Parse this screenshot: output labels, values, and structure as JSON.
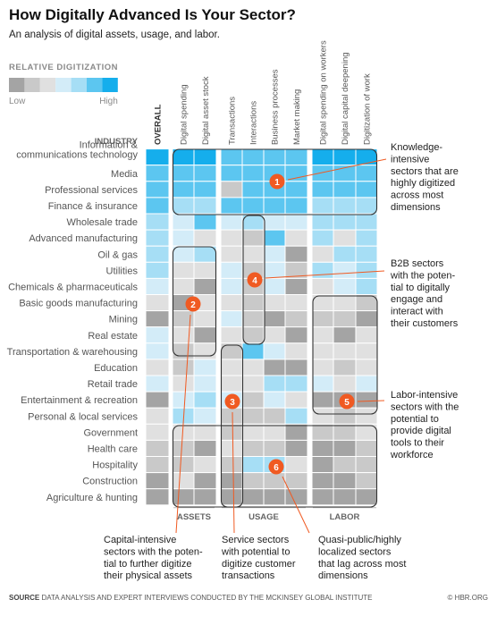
{
  "title": "How Digitally Advanced Is Your Sector?",
  "subtitle": "An analysis of digital assets, usage, and labor.",
  "footer": {
    "source_label": "SOURCE",
    "source_text": "DATA ANALYSIS AND EXPERT INTERVIEWS CONDUCTED BY THE MCKINSEY GLOBAL INSTITUTE",
    "brand": "© HBR.ORG"
  },
  "legend": {
    "title": "RELATIVE DIGITIZATION",
    "low": "Low",
    "high": "High",
    "colors": [
      "#a4a4a4",
      "#c9c9c9",
      "#e0e0e0",
      "#d3ecf8",
      "#a6def5",
      "#5cc6f0",
      "#15aeec"
    ]
  },
  "chart_data": {
    "type": "heatmap",
    "row_header": "INDUSTRY",
    "columns": [
      "OVERALL",
      "Digital spending",
      "Digital asset stock",
      "Transactions",
      "Interactions",
      "Business processes",
      "Market making",
      "Digital spending on workers",
      "Digital capital deepening",
      "Digitization of work"
    ],
    "column_groups": [
      {
        "label": "ASSETS",
        "columns": [
          1,
          2
        ]
      },
      {
        "label": "USAGE",
        "columns": [
          3,
          4,
          5,
          6
        ]
      },
      {
        "label": "LABOR",
        "columns": [
          7,
          8,
          9
        ]
      }
    ],
    "scale": "relative digitization level 0 (low) to 6 (high)",
    "rows": [
      {
        "industry": "Information & communications technology",
        "values": [
          6,
          6,
          6,
          5,
          5,
          5,
          5,
          6,
          6,
          6
        ]
      },
      {
        "industry": "Media",
        "values": [
          5,
          5,
          5,
          5,
          5,
          5,
          5,
          5,
          5,
          5
        ]
      },
      {
        "industry": "Professional services",
        "values": [
          5,
          5,
          5,
          1,
          5,
          5,
          5,
          5,
          5,
          5
        ]
      },
      {
        "industry": "Finance & insurance",
        "values": [
          5,
          4,
          4,
          5,
          5,
          5,
          5,
          4,
          4,
          4
        ]
      },
      {
        "industry": "Wholesale trade",
        "values": [
          4,
          3,
          5,
          3,
          4,
          3,
          3,
          4,
          4,
          4
        ]
      },
      {
        "industry": "Advanced manufacturing",
        "values": [
          4,
          3,
          2,
          2,
          1,
          5,
          2,
          4,
          2,
          4
        ]
      },
      {
        "industry": "Oil & gas",
        "values": [
          4,
          3,
          4,
          2,
          2,
          3,
          0,
          2,
          4,
          4
        ]
      },
      {
        "industry": "Utilities",
        "values": [
          4,
          2,
          2,
          3,
          1,
          3,
          1,
          4,
          3,
          4
        ]
      },
      {
        "industry": "Chemicals & pharmaceuticals",
        "values": [
          3,
          2,
          0,
          3,
          1,
          3,
          0,
          2,
          3,
          4
        ]
      },
      {
        "industry": "Basic goods manufacturing",
        "values": [
          2,
          0,
          2,
          2,
          1,
          2,
          2,
          2,
          2,
          1
        ]
      },
      {
        "industry": "Mining",
        "values": [
          0,
          1,
          2,
          3,
          1,
          0,
          1,
          1,
          1,
          0
        ]
      },
      {
        "industry": "Real estate",
        "values": [
          3,
          2,
          0,
          2,
          1,
          2,
          0,
          2,
          0,
          2
        ]
      },
      {
        "industry": "Transportation & warehousing",
        "values": [
          3,
          1,
          2,
          1,
          5,
          3,
          2,
          2,
          2,
          2
        ]
      },
      {
        "industry": "Education",
        "values": [
          2,
          1,
          3,
          2,
          2,
          0,
          0,
          2,
          1,
          2
        ]
      },
      {
        "industry": "Retail trade",
        "values": [
          3,
          2,
          3,
          2,
          2,
          4,
          4,
          3,
          2,
          3
        ]
      },
      {
        "industry": "Entertainment & recreation",
        "values": [
          0,
          3,
          4,
          3,
          1,
          3,
          2,
          0,
          0,
          0
        ]
      },
      {
        "industry": "Personal & local services",
        "values": [
          2,
          4,
          3,
          1,
          1,
          1,
          4,
          2,
          1,
          2
        ]
      },
      {
        "industry": "Government",
        "values": [
          2,
          2,
          2,
          1,
          2,
          2,
          0,
          1,
          1,
          2
        ]
      },
      {
        "industry": "Health care",
        "values": [
          1,
          1,
          0,
          2,
          1,
          1,
          0,
          0,
          0,
          1
        ]
      },
      {
        "industry": "Hospitality",
        "values": [
          1,
          1,
          2,
          1,
          4,
          4,
          2,
          0,
          1,
          1
        ]
      },
      {
        "industry": "Construction",
        "values": [
          0,
          2,
          0,
          0,
          1,
          1,
          1,
          0,
          0,
          1
        ]
      },
      {
        "industry": "Agriculture & hunting",
        "values": [
          0,
          0,
          0,
          0,
          0,
          0,
          0,
          0,
          0,
          0
        ]
      }
    ],
    "annotations": [
      {
        "number": "1",
        "text": [
          "Knowledge-",
          "intensive",
          "sectors that are",
          "highly digitized",
          "across most",
          "dimensions"
        ]
      },
      {
        "number": "2",
        "text": [
          "Capital-intensive",
          "sectors with the poten-",
          "tial to further digitize",
          "their physical assets"
        ]
      },
      {
        "number": "3",
        "text": [
          "Service sectors",
          "with potential to",
          "digitize customer",
          "transactions"
        ]
      },
      {
        "number": "4",
        "text": [
          "B2B sectors",
          "with the poten-",
          "tial to digitally",
          "engage and",
          "interact with",
          "their customers"
        ]
      },
      {
        "number": "5",
        "text": [
          "Labor-intensive",
          "sectors with the",
          "potential to",
          "provide digital",
          "tools to their",
          "workforce"
        ]
      },
      {
        "number": "6",
        "text": [
          "Quasi-public/highly",
          "localized sectors",
          "that lag across most",
          "dimensions"
        ]
      }
    ]
  }
}
